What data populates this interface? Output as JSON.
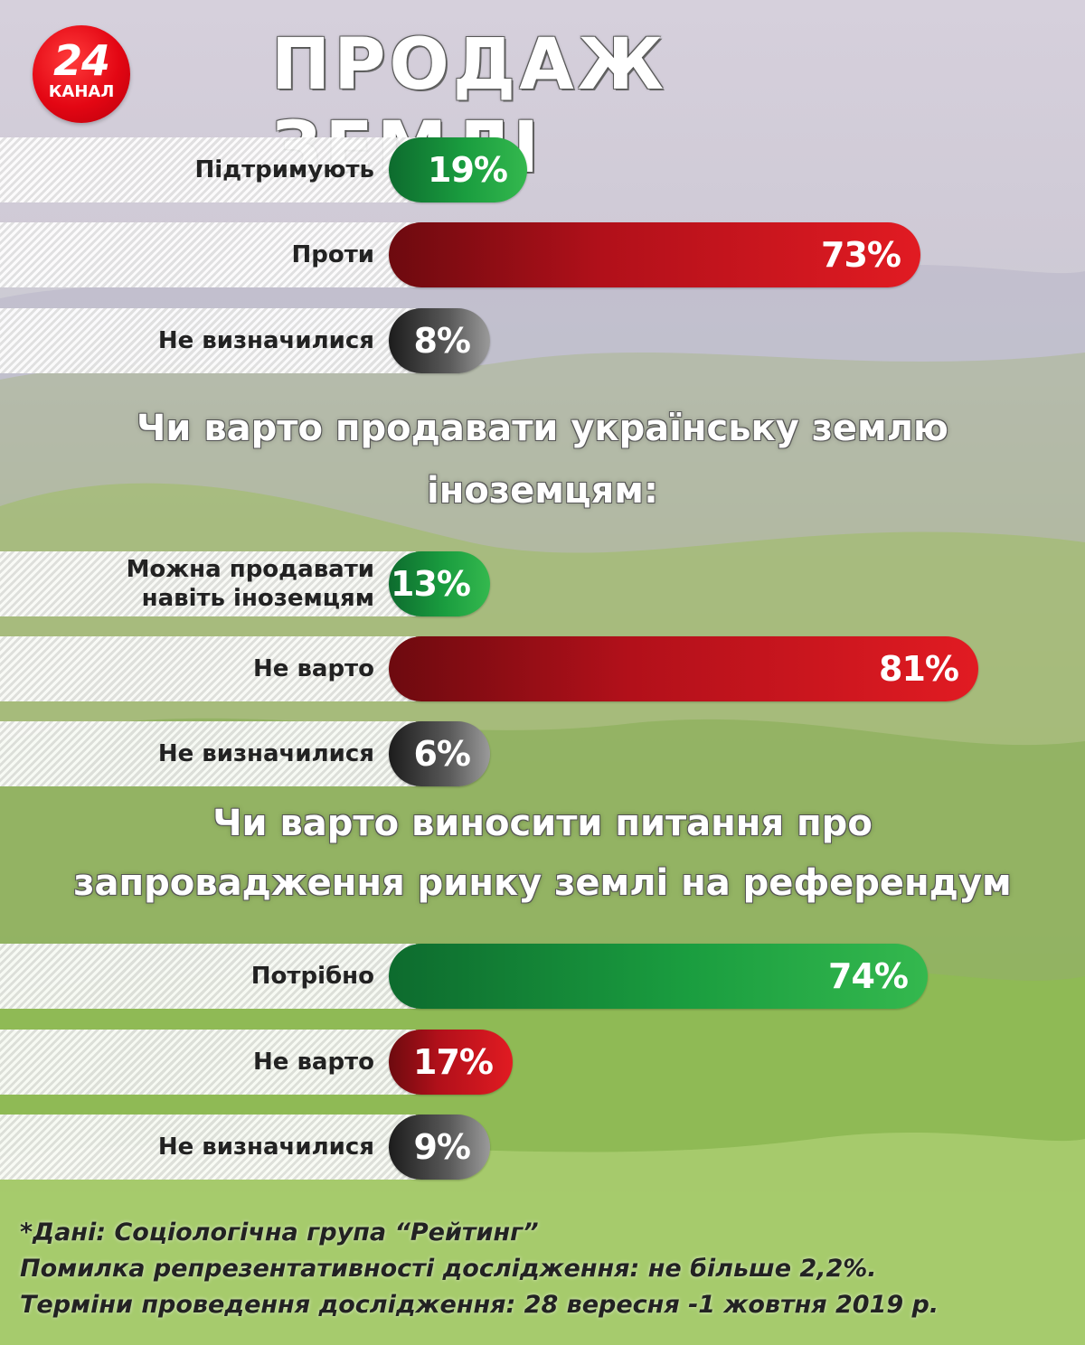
{
  "logo": {
    "number": "24",
    "text": "КАНАЛ"
  },
  "title": "ПРОДАЖ ЗЕМЛІ",
  "colors": {
    "green": "#1a9d3f",
    "red": "#c8141c",
    "gray": "#5a5a5a"
  },
  "chart_data": [
    {
      "type": "bar",
      "title": "",
      "categories": [
        "Підтримують",
        "Проти",
        "Не визначилися"
      ],
      "values": [
        19,
        73,
        8
      ],
      "value_labels": [
        "19%",
        "73%",
        "8%"
      ],
      "bar_colors": [
        "green",
        "red",
        "gray"
      ],
      "xlim": [
        0,
        100
      ]
    },
    {
      "type": "bar",
      "title": "Чи варто продавати українську землю іноземцям:",
      "categories": [
        "Можна продавати навіть іноземцям",
        "Не варто",
        "Не визначилися"
      ],
      "values": [
        13,
        81,
        6
      ],
      "value_labels": [
        "13%",
        "81%",
        "6%"
      ],
      "bar_colors": [
        "green",
        "red",
        "gray"
      ],
      "xlim": [
        0,
        100
      ]
    },
    {
      "type": "bar",
      "title": "Чи варто виносити питання про запровадження ринку землі на референдум",
      "categories": [
        "Потрібно",
        "Не варто",
        "Не визначилися"
      ],
      "values": [
        74,
        17,
        9
      ],
      "value_labels": [
        "74%",
        "17%",
        "9%"
      ],
      "bar_colors": [
        "green",
        "red",
        "gray"
      ],
      "xlim": [
        0,
        100
      ]
    }
  ],
  "headings": {
    "q2_line1": "Чи варто продавати українську землю",
    "q2_line2": "іноземцям:",
    "q3_line1": "Чи варто виносити питання про",
    "q3_line2": "запровадження ринку землі на референдум"
  },
  "row_labels": {
    "q2_c0_line1": "Можна продавати",
    "q2_c0_line2": "навіть іноземцям"
  },
  "footer": [
    "*Дані: Соціологічна група “Рейтинг”",
    "Помилка репрезентативності дослідження: не більше 2,2%.",
    "Терміни проведення дослідження: 28 вересня -1 жовтня 2019 р."
  ]
}
